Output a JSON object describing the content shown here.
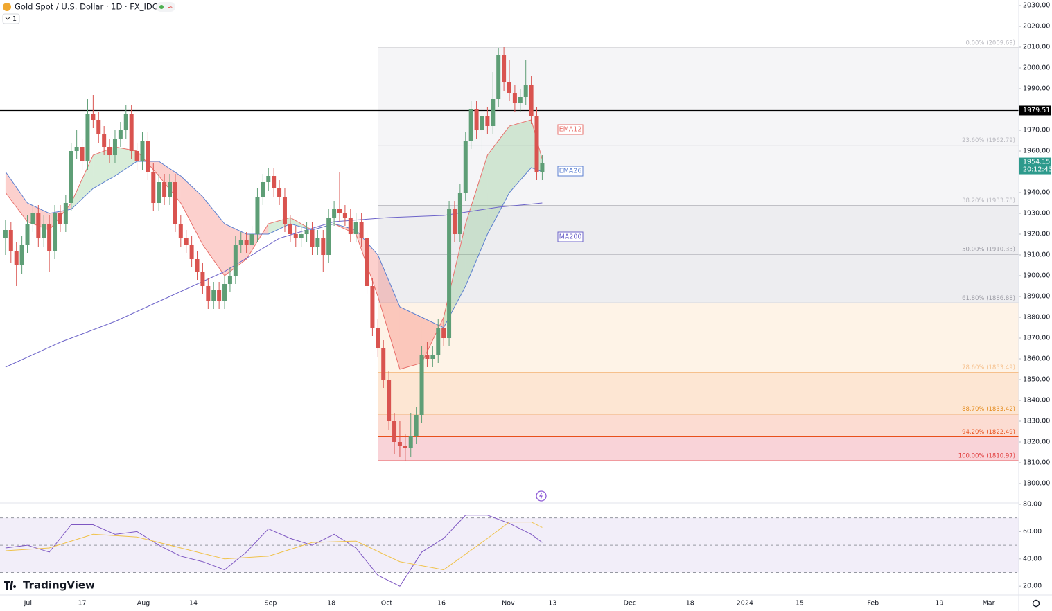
{
  "chart_data": [
    {
      "type": "candlestick",
      "title": "Gold Spot / U.S. Dollar · 1D · FX_IDC",
      "header_badge": "1",
      "branding": "TradingView",
      "xlim": [
        -1,
        185
      ],
      "xticks": [
        {
          "value": 4.1,
          "label": "Jul"
        },
        {
          "value": 14,
          "label": "17"
        },
        {
          "value": 25.2,
          "label": "Aug"
        },
        {
          "value": 34.3,
          "label": "14"
        },
        {
          "value": 48.4,
          "label": "Sep"
        },
        {
          "value": 59.5,
          "label": "18"
        },
        {
          "value": 69.6,
          "label": "Oct"
        },
        {
          "value": 79.6,
          "label": "16"
        },
        {
          "value": 91.8,
          "label": "Nov"
        },
        {
          "value": 99.9,
          "label": "13"
        },
        {
          "value": 114,
          "label": "Dec"
        },
        {
          "value": 125,
          "label": "18"
        },
        {
          "value": 135,
          "label": "2024"
        },
        {
          "value": 145,
          "label": "15"
        },
        {
          "value": 158.4,
          "label": "Feb"
        },
        {
          "value": 170.5,
          "label": "19"
        },
        {
          "value": 179.5,
          "label": "Mar"
        }
      ],
      "ylim": [
        1791,
        2032.67
      ],
      "yticks": [
        {
          "value": 1800,
          "label": "1800.00"
        },
        {
          "value": 1810,
          "label": "1810.00"
        },
        {
          "value": 1820,
          "label": "1820.00"
        },
        {
          "value": 1830,
          "label": "1830.00"
        },
        {
          "value": 1840,
          "label": "1840.00"
        },
        {
          "value": 1850,
          "label": "1850.00"
        },
        {
          "value": 1860,
          "label": "1860.00"
        },
        {
          "value": 1870,
          "label": "1870.00"
        },
        {
          "value": 1880,
          "label": "1880.00"
        },
        {
          "value": 1890,
          "label": "1890.00"
        },
        {
          "value": 1900,
          "label": "1900.00"
        },
        {
          "value": 1910,
          "label": "1910.00"
        },
        {
          "value": 1920,
          "label": "1920.00"
        },
        {
          "value": 1930,
          "label": "1930.00"
        },
        {
          "value": 1940,
          "label": "1940.00"
        },
        {
          "value": 1950,
          "label": "1950.00"
        },
        {
          "value": 1960,
          "label": "1960.00"
        },
        {
          "value": 1970,
          "label": "1970.00"
        },
        {
          "value": 1980,
          "label": "1980.00"
        },
        {
          "value": 1990,
          "label": "1990.00"
        },
        {
          "value": 2000,
          "label": "2000.00"
        },
        {
          "value": 2010,
          "label": "2010.00"
        },
        {
          "value": 2020,
          "label": "2020.00"
        },
        {
          "value": 2030,
          "label": "2030.00"
        }
      ],
      "up_color": "#5e9e76",
      "down_color": "#d9534f",
      "candles": [
        [
          1918,
          1927,
          1910,
          1922
        ],
        [
          1922,
          1926,
          1906,
          1912
        ],
        [
          1912,
          1916,
          1895,
          1905
        ],
        [
          1905,
          1919,
          1901,
          1915
        ],
        [
          1915,
          1929,
          1911,
          1925
        ],
        [
          1925,
          1934,
          1921,
          1930
        ],
        [
          1930,
          1934,
          1914,
          1918
        ],
        [
          1918,
          1929,
          1914,
          1925
        ],
        [
          1925,
          1929,
          1902,
          1912
        ],
        [
          1912,
          1934,
          1908,
          1930
        ],
        [
          1930,
          1934,
          1921,
          1925
        ],
        [
          1925,
          1939,
          1921,
          1935
        ],
        [
          1935,
          1964,
          1931,
          1960
        ],
        [
          1960,
          1970,
          1956,
          1962
        ],
        [
          1962,
          1966,
          1951,
          1955
        ],
        [
          1955,
          1985,
          1951,
          1978
        ],
        [
          1978,
          1987,
          1971,
          1975
        ],
        [
          1975,
          1979,
          1964,
          1968
        ],
        [
          1968,
          1972,
          1958,
          1962
        ],
        [
          1962,
          1966,
          1954,
          1958
        ],
        [
          1958,
          1970,
          1954,
          1966
        ],
        [
          1966,
          1974,
          1962,
          1970
        ],
        [
          1970,
          1982,
          1966,
          1978
        ],
        [
          1978,
          1982,
          1956,
          1960
        ],
        [
          1960,
          1964,
          1951,
          1955
        ],
        [
          1955,
          1969,
          1951,
          1965
        ],
        [
          1965,
          1969,
          1946,
          1950
        ],
        [
          1950,
          1954,
          1931,
          1935
        ],
        [
          1935,
          1949,
          1931,
          1945
        ],
        [
          1945,
          1949,
          1934,
          1938
        ],
        [
          1938,
          1949,
          1934,
          1945
        ],
        [
          1945,
          1949,
          1921,
          1925
        ],
        [
          1925,
          1929,
          1914,
          1918
        ],
        [
          1918,
          1922,
          1911,
          1915
        ],
        [
          1915,
          1919,
          1904,
          1908
        ],
        [
          1908,
          1912,
          1898,
          1902
        ],
        [
          1902,
          1906,
          1891,
          1895
        ],
        [
          1895,
          1899,
          1884,
          1888
        ],
        [
          1888,
          1897,
          1884,
          1893
        ],
        [
          1893,
          1897,
          1884,
          1888
        ],
        [
          1888,
          1900,
          1884,
          1896
        ],
        [
          1896,
          1904,
          1892,
          1900
        ],
        [
          1900,
          1919,
          1896,
          1915
        ],
        [
          1915,
          1921,
          1911,
          1917
        ],
        [
          1917,
          1921,
          1911,
          1915
        ],
        [
          1915,
          1924,
          1911,
          1920
        ],
        [
          1920,
          1942,
          1916,
          1938
        ],
        [
          1938,
          1949,
          1934,
          1945
        ],
        [
          1945,
          1952,
          1941,
          1948
        ],
        [
          1948,
          1952,
          1938,
          1942
        ],
        [
          1942,
          1946,
          1934,
          1938
        ],
        [
          1938,
          1942,
          1921,
          1925
        ],
        [
          1925,
          1929,
          1916,
          1920
        ],
        [
          1920,
          1924,
          1914,
          1918
        ],
        [
          1918,
          1924,
          1914,
          1920
        ],
        [
          1920,
          1926,
          1916,
          1922
        ],
        [
          1922,
          1926,
          1910,
          1914
        ],
        [
          1914,
          1922,
          1910,
          1918
        ],
        [
          1918,
          1922,
          1902,
          1910
        ],
        [
          1910,
          1932,
          1906,
          1928
        ],
        [
          1928,
          1936,
          1924,
          1932
        ],
        [
          1932,
          1950,
          1926,
          1930
        ],
        [
          1930,
          1934,
          1924,
          1928
        ],
        [
          1928,
          1932,
          1916,
          1920
        ],
        [
          1920,
          1930,
          1916,
          1926
        ],
        [
          1926,
          1930,
          1914,
          1918
        ],
        [
          1918,
          1922,
          1891,
          1895
        ],
        [
          1895,
          1899,
          1871,
          1875
        ],
        [
          1875,
          1879,
          1861,
          1865
        ],
        [
          1865,
          1869,
          1846,
          1850
        ],
        [
          1850,
          1854,
          1826,
          1830
        ],
        [
          1830,
          1834,
          1814,
          1820
        ],
        [
          1820,
          1830,
          1813,
          1818
        ],
        [
          1818,
          1824,
          1810.97,
          1817
        ],
        [
          1817,
          1834,
          1813,
          1823
        ],
        [
          1823,
          1837,
          1819,
          1833
        ],
        [
          1833,
          1866,
          1829,
          1862
        ],
        [
          1862,
          1868,
          1856,
          1860
        ],
        [
          1860,
          1866,
          1856,
          1862
        ],
        [
          1862,
          1879,
          1858,
          1875
        ],
        [
          1875,
          1879,
          1866,
          1870
        ],
        [
          1870,
          1936,
          1866,
          1932
        ],
        [
          1932,
          1936,
          1916,
          1920
        ],
        [
          1920,
          1944,
          1916,
          1940
        ],
        [
          1940,
          1969,
          1936,
          1965
        ],
        [
          1965,
          1984,
          1961,
          1980
        ],
        [
          1980,
          1984,
          1966,
          1970
        ],
        [
          1970,
          1981,
          1960,
          1977
        ],
        [
          1977,
          1981,
          1968,
          1972
        ],
        [
          1972,
          1998,
          1968,
          1985
        ],
        [
          1985,
          2009.69,
          1981,
          2006
        ],
        [
          2006,
          2010,
          1989,
          1993
        ],
        [
          1993,
          2004,
          1984,
          1988
        ],
        [
          1988,
          1992,
          1979,
          1983
        ],
        [
          1983,
          1990,
          1979,
          1986
        ],
        [
          1986,
          2004,
          1982,
          1992
        ],
        [
          1992,
          1996,
          1973,
          1977
        ],
        [
          1977,
          1981,
          1946,
          1950
        ],
        [
          1950,
          1958,
          1946,
          1954.15
        ]
      ],
      "overlays": [
        {
          "name": "EMA12",
          "color": "#e8706b",
          "x": [
            0,
            4,
            8,
            12,
            16,
            20,
            24,
            28,
            32,
            36,
            40,
            44,
            48,
            52,
            56,
            60,
            64,
            68,
            72,
            76,
            80,
            84,
            88,
            92,
            96,
            98
          ],
          "values": [
            1940,
            1926,
            1922,
            1935,
            1958,
            1962,
            1960,
            1948,
            1935,
            1915,
            1900,
            1908,
            1925,
            1928,
            1922,
            1925,
            1920,
            1890,
            1855,
            1858,
            1880,
            1925,
            1958,
            1972,
            1975,
            1956
          ]
        },
        {
          "name": "EMA26",
          "color": "#5b7fd0",
          "x": [
            0,
            4,
            8,
            12,
            16,
            20,
            24,
            28,
            32,
            36,
            40,
            44,
            48,
            52,
            56,
            60,
            64,
            68,
            72,
            76,
            80,
            84,
            88,
            92,
            96,
            98
          ],
          "values": [
            1950,
            1935,
            1930,
            1932,
            1942,
            1948,
            1955,
            1955,
            1948,
            1938,
            1925,
            1920,
            1920,
            1925,
            1922,
            1925,
            1922,
            1910,
            1885,
            1880,
            1875,
            1895,
            1920,
            1940,
            1952,
            1950
          ]
        },
        {
          "name": "MA200",
          "color": "#6c63c9",
          "x": [
            0,
            10,
            20,
            30,
            40,
            50,
            60,
            70,
            80,
            90,
            98
          ],
          "values": [
            1856,
            1868,
            1878,
            1890,
            1902,
            1918,
            1926,
            1928,
            1929,
            1933,
            1935
          ]
        }
      ],
      "fib_levels": [
        {
          "value": 2009.69,
          "label": "0.00% (2009.69)",
          "color": "#b8b8bf",
          "fill": "#f5f5f7"
        },
        {
          "value": 1962.79,
          "label": "23.60% (1962.79)",
          "color": "#b8b8bf",
          "fill": "#f5f5f7"
        },
        {
          "value": 1933.78,
          "label": "38.20% (1933.78)",
          "color": "#b8b8bf",
          "fill": "#ededf0"
        },
        {
          "value": 1910.33,
          "label": "50.00% (1910.33)",
          "color": "#9a9aa3",
          "fill": "#ededf0"
        },
        {
          "value": 1886.88,
          "label": "61.80% (1886.88)",
          "color": "#9a9aa3",
          "fill": "#fef3e7"
        },
        {
          "value": 1853.49,
          "label": "78.60% (1853.49)",
          "color": "#f6c08c",
          "fill": "#fde6d3"
        },
        {
          "value": 1833.42,
          "label": "88.70% (1833.42)",
          "color": "#e48a1b",
          "fill": "#fcdcd2"
        },
        {
          "value": 1822.49,
          "label": "94.20% (1822.49)",
          "color": "#e8501c",
          "fill": "#f9d3d8"
        },
        {
          "value": 1810.97,
          "label": "100.00% (1810.97)",
          "color": "#e03c3c"
        }
      ],
      "fib_start": 68,
      "horizontal_line": {
        "value": 1979.51,
        "label": "1979.51",
        "color": "#000000"
      },
      "last_price": {
        "value": 1954.15,
        "label": "1954.15",
        "countdown": "20:12:43",
        "color": "#2d9a8c"
      }
    },
    {
      "type": "line",
      "xlim": [
        -1,
        185
      ],
      "ylim": [
        14,
        81
      ],
      "yticks": [
        {
          "value": 20,
          "label": "20.00"
        },
        {
          "value": 40,
          "label": "40.00"
        },
        {
          "value": 60,
          "label": "60.00"
        },
        {
          "value": 80,
          "label": "80.00"
        }
      ],
      "band": [
        30,
        70
      ],
      "levels": [
        30,
        50,
        70
      ],
      "series": [
        {
          "color": "#7e57c2",
          "x": [
            0,
            4,
            8,
            12,
            16,
            20,
            24,
            28,
            32,
            36,
            40,
            44,
            48,
            52,
            56,
            60,
            64,
            68,
            72,
            76,
            80,
            84,
            88,
            92,
            96,
            98
          ],
          "values": [
            48,
            50,
            45,
            65,
            65,
            58,
            60,
            50,
            42,
            38,
            32,
            45,
            62,
            55,
            50,
            58,
            48,
            28,
            20,
            45,
            55,
            72,
            72,
            66,
            58,
            52
          ]
        },
        {
          "color": "#f0c24a",
          "x": [
            0,
            8,
            16,
            24,
            32,
            40,
            48,
            56,
            64,
            72,
            80,
            88,
            92,
            96,
            98
          ],
          "values": [
            46,
            48,
            58,
            56,
            48,
            40,
            42,
            52,
            53,
            38,
            32,
            55,
            67,
            67,
            63
          ]
        }
      ]
    }
  ]
}
